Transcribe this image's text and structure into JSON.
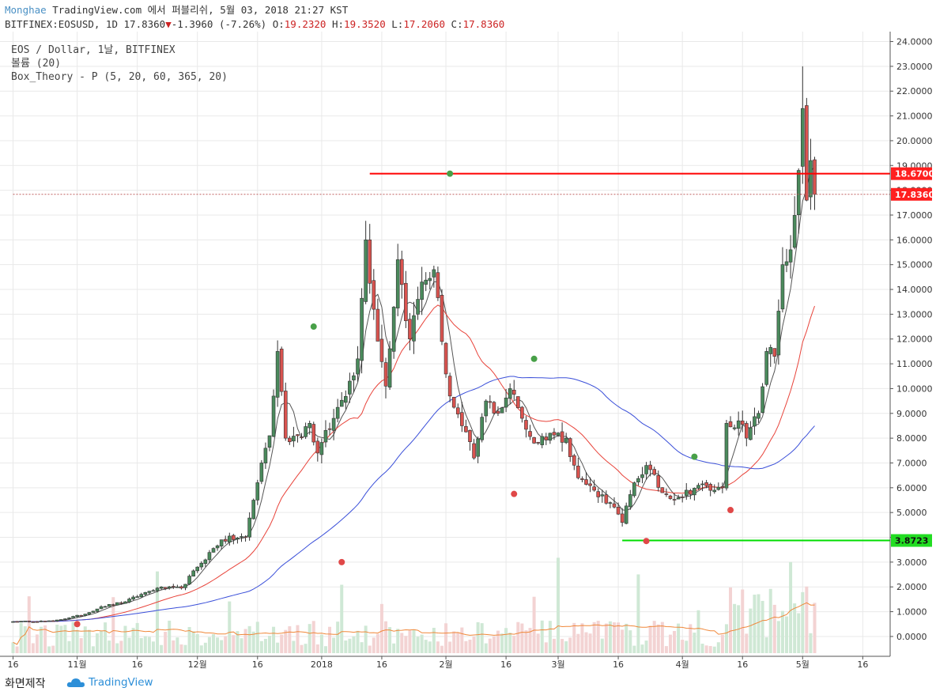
{
  "header": {
    "brand": "Monghae",
    "title": "TradingView.com 에서 퍼블리쉬, 5월 03, 2018 21:27 KST",
    "symbol": "BITFINEX:EOSUSD, 1D",
    "last": "17.8360",
    "change": "-1.3960 (-7.26%)",
    "o_label": "O:",
    "o": "19.2320",
    "h_label": "H:",
    "h": "19.3520",
    "l_label": "L:",
    "l": "17.2060",
    "c_label": "C:",
    "c": "17.8360"
  },
  "legend": {
    "line1": "EOS / Dollar, 1날, BITFINEX",
    "line2": "볼륨 (20)",
    "line3": "Box_Theory - P (5, 20, 60, 365, 20)"
  },
  "footer": {
    "screenshot_label": "화면제작",
    "logo_text": "TradingView"
  },
  "colors": {
    "up": "#4a8a5c",
    "down": "#d9534f",
    "ma5": "#555555",
    "ma20": "#e8433a",
    "ma60": "#3a4fd9",
    "vol_ma": "#f0883a",
    "level_high": "#ff0000",
    "level_low": "#00dd00"
  },
  "chart_data": {
    "type": "candlestick",
    "ylim": [
      -0.8,
      24.4
    ],
    "y_ticks": [
      "24.0000",
      "23.0000",
      "22.0000",
      "21.0000",
      "20.0000",
      "19.0000",
      "18.0000",
      "17.0000",
      "16.0000",
      "15.0000",
      "14.0000",
      "13.0000",
      "12.0000",
      "11.0000",
      "10.0000",
      "9.0000",
      "8.0000",
      "7.0000",
      "6.0000",
      "5.0000",
      "4.0000",
      "3.0000",
      "2.0000",
      "1.0000",
      "0.0000"
    ],
    "x_ticks": [
      {
        "label": "16",
        "i": 0
      },
      {
        "label": "11월",
        "i": 16
      },
      {
        "label": "16",
        "i": 31
      },
      {
        "label": "12월",
        "i": 46
      },
      {
        "label": "16",
        "i": 61
      },
      {
        "label": "2018",
        "i": 77
      },
      {
        "label": "16",
        "i": 92
      },
      {
        "label": "2월",
        "i": 108
      },
      {
        "label": "16",
        "i": 123
      },
      {
        "label": "3월",
        "i": 136
      },
      {
        "label": "16",
        "i": 151
      },
      {
        "label": "4월",
        "i": 167
      },
      {
        "label": "16",
        "i": 182
      },
      {
        "label": "5월",
        "i": 197
      },
      {
        "label": "16",
        "i": 212
      }
    ],
    "price_labels": [
      {
        "value": 18.67,
        "text": "18.6700",
        "color": "#ff2020"
      },
      {
        "value": 17.836,
        "text": "17.8360",
        "color": "#ff2020"
      },
      {
        "value": 3.8723,
        "text": "3.8723",
        "color": "#22dd22"
      }
    ],
    "levels": [
      {
        "value": 18.67,
        "from_i": 89,
        "color": "#ff0000"
      },
      {
        "value": 3.8723,
        "from_i": 152,
        "color": "#00dd00"
      },
      {
        "value": 17.836,
        "from_i": 0,
        "color": "#c06060",
        "dashed": true
      }
    ],
    "markers": [
      {
        "i": 16,
        "value": 0.5,
        "color": "#e04848"
      },
      {
        "i": 75,
        "value": 12.5,
        "color": "#48a048"
      },
      {
        "i": 82,
        "value": 3.0,
        "color": "#e04848"
      },
      {
        "i": 109,
        "value": 18.67,
        "color": "#48a048"
      },
      {
        "i": 125,
        "value": 5.75,
        "color": "#e04848"
      },
      {
        "i": 130,
        "value": 11.2,
        "color": "#48a048"
      },
      {
        "i": 158,
        "value": 3.85,
        "color": "#e04848"
      },
      {
        "i": 170,
        "value": 7.25,
        "color": "#48a048"
      },
      {
        "i": 179,
        "value": 5.1,
        "color": "#e04848"
      }
    ],
    "anchors": [
      [
        0,
        0.6
      ],
      [
        10,
        0.62
      ],
      [
        18,
        0.9
      ],
      [
        22,
        1.2
      ],
      [
        28,
        1.4
      ],
      [
        32,
        1.7
      ],
      [
        36,
        1.95
      ],
      [
        42,
        1.95
      ],
      [
        46,
        2.8
      ],
      [
        52,
        3.9
      ],
      [
        58,
        4.0
      ],
      [
        62,
        7.0
      ],
      [
        64,
        8.1
      ],
      [
        66,
        11.5
      ],
      [
        68,
        8.0
      ],
      [
        71,
        8.1
      ],
      [
        74,
        8.6
      ],
      [
        76,
        7.4
      ],
      [
        80,
        8.8
      ],
      [
        84,
        10.3
      ],
      [
        86,
        11.2
      ],
      [
        88,
        16.0
      ],
      [
        90,
        13.2
      ],
      [
        93,
        10.1
      ],
      [
        96,
        15.2
      ],
      [
        99,
        12.0
      ],
      [
        102,
        14.3
      ],
      [
        105,
        14.8
      ],
      [
        107,
        11.9
      ],
      [
        109,
        9.7
      ],
      [
        112,
        8.5
      ],
      [
        115,
        7.2
      ],
      [
        118,
        9.5
      ],
      [
        121,
        9.0
      ],
      [
        124,
        10.0
      ],
      [
        127,
        8.8
      ],
      [
        130,
        7.8
      ],
      [
        134,
        8.2
      ],
      [
        138,
        8.0
      ],
      [
        141,
        6.4
      ],
      [
        145,
        5.9
      ],
      [
        149,
        5.4
      ],
      [
        152,
        4.6
      ],
      [
        155,
        6.2
      ],
      [
        158,
        6.9
      ],
      [
        162,
        5.8
      ],
      [
        166,
        5.6
      ],
      [
        171,
        6.1
      ],
      [
        175,
        5.9
      ],
      [
        177,
        6.0
      ],
      [
        178,
        8.6
      ],
      [
        181,
        8.7
      ],
      [
        183,
        8.0
      ],
      [
        186,
        9.0
      ],
      [
        188,
        11.5
      ],
      [
        190,
        11.3
      ],
      [
        192,
        15.0
      ],
      [
        194,
        15.6
      ],
      [
        196,
        18.8
      ],
      [
        197,
        21.3
      ],
      [
        198,
        17.6
      ],
      [
        199,
        19.2
      ],
      [
        200,
        17.836
      ]
    ],
    "volume": {
      "ylim": [
        0,
        6.0
      ],
      "ma_period": 20
    }
  }
}
